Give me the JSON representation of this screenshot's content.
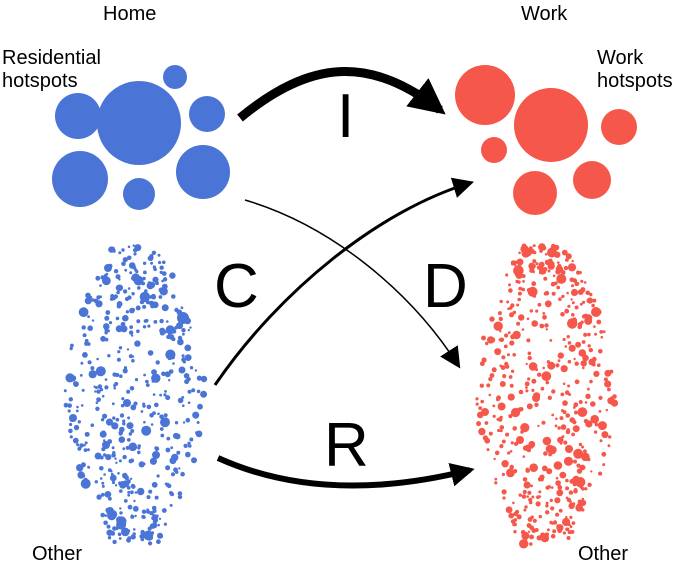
{
  "labels": {
    "home": "Home",
    "work": "Work",
    "residential_line1": "Residential",
    "residential_line2": "hotspots",
    "work_line1": "Work",
    "work_line2": "hotspots",
    "other_left": "Other",
    "other_right": "Other"
  },
  "flows": {
    "I": "I",
    "C": "C",
    "D": "D",
    "R": "R"
  },
  "colors": {
    "home": "#4a74d6",
    "work": "#f5574a",
    "arrow": "#000000"
  }
}
